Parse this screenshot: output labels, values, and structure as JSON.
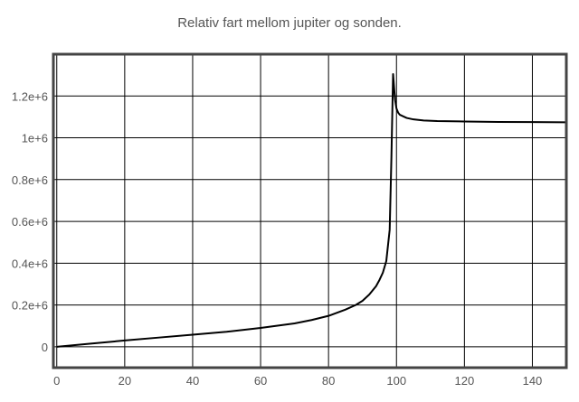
{
  "chart_data": {
    "type": "line",
    "title": "Relativ fart mellom jupiter og sonden.",
    "xlabel": "",
    "ylabel": "",
    "xlim": [
      -1,
      150
    ],
    "ylim": [
      -100000,
      1400000
    ],
    "xticks": [
      0,
      20,
      40,
      60,
      80,
      100,
      120,
      140
    ],
    "yticks": [
      0,
      200000,
      400000,
      600000,
      800000,
      1000000,
      1200000
    ],
    "ytick_labels": [
      "0",
      "0.2e+6",
      "0.4e+6",
      "0.6e+6",
      "0.8e+6",
      "1e+6",
      "1.2e+6"
    ],
    "grid": true,
    "series": [
      {
        "color": "#000000",
        "x": [
          0,
          10,
          20,
          30,
          40,
          50,
          60,
          70,
          75,
          80,
          85,
          88,
          90,
          92,
          94,
          95,
          96,
          97,
          98,
          98.5,
          99,
          99.3,
          99.6,
          100,
          100.5,
          101,
          103,
          105,
          108,
          112,
          120,
          130,
          140,
          150
        ],
        "y": [
          0,
          15000,
          30000,
          44000,
          58000,
          72000,
          90000,
          112000,
          128000,
          148000,
          178000,
          200000,
          220000,
          250000,
          290000,
          320000,
          355000,
          410000,
          560000,
          900000,
          1305000,
          1240000,
          1180000,
          1140000,
          1120000,
          1110000,
          1095000,
          1088000,
          1083000,
          1080000,
          1078000,
          1076000,
          1075000,
          1074000
        ]
      }
    ]
  }
}
